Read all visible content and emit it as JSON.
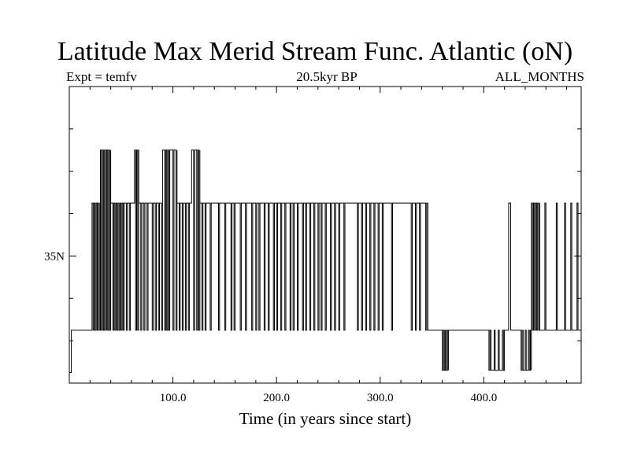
{
  "chart_data": {
    "type": "line",
    "title": "Latitude Max Merid Stream Func. Atlantic (oN)",
    "subtitle_left": "Expt = temfv",
    "subtitle_center": "20.5kyr BP",
    "subtitle_right": "ALL_MONTHS",
    "xlabel": "Time (in years since start)",
    "ylabel": "",
    "xlim": [
      0,
      494
    ],
    "ylim": [
      29,
      43
    ],
    "x_ticks": [
      {
        "value": 100,
        "label": "100.0"
      },
      {
        "value": 200,
        "label": "200.0"
      },
      {
        "value": 300,
        "label": "300.0"
      },
      {
        "value": 400,
        "label": "400.0"
      }
    ],
    "x_minor_step": 20,
    "y_ticks": [
      {
        "value": 35,
        "label": "35N"
      }
    ],
    "y_minor_ticks": [
      31,
      33,
      37,
      39,
      41
    ],
    "grid": false,
    "series": [
      {
        "segments": [
          {
            "x0": 0,
            "x1": 2,
            "y": 29.5
          },
          {
            "x0": 2,
            "x1": 22,
            "y": 31.5
          },
          {
            "x0": 22,
            "x1": 30,
            "y": 37.5,
            "spikes": [
              23,
              25,
              27,
              29
            ]
          },
          {
            "x0": 30,
            "x1": 40,
            "y": 40,
            "spikes": [
              31,
              33,
              35,
              37,
              39
            ]
          },
          {
            "x0": 40,
            "x1": 60,
            "y": 37.5,
            "spikes": [
              42,
              44,
              46,
              48,
              50,
              52,
              55,
              58
            ]
          },
          {
            "x0": 60,
            "x1": 63,
            "y": 37.5
          },
          {
            "x0": 63,
            "x1": 67,
            "y": 40,
            "spikes": [
              64,
              66
            ]
          },
          {
            "x0": 67,
            "x1": 90,
            "y": 37.5,
            "spikes": [
              69,
              72,
              75,
              80,
              83,
              86,
              89
            ]
          },
          {
            "x0": 90,
            "x1": 104,
            "y": 40,
            "spikes": [
              92,
              94,
              96,
              100,
              103
            ]
          },
          {
            "x0": 104,
            "x1": 118,
            "y": 37.5,
            "spikes": [
              106,
              109,
              112,
              115
            ]
          },
          {
            "x0": 118,
            "x1": 126,
            "y": 40,
            "spikes": [
              120,
              123,
              125
            ]
          },
          {
            "x0": 126,
            "x1": 160,
            "y": 37.5,
            "spikes": [
              128,
              131,
              136,
              144,
              150,
              156,
              159
            ]
          },
          {
            "x0": 160,
            "x1": 346,
            "y": 37.5,
            "spikes": [
              165,
              170,
              176,
              180,
              183,
              188,
              192,
              197,
              200,
              204,
              208,
              213,
              216,
              220,
              225,
              228,
              232,
              236,
              240,
              243,
              247,
              252,
              256,
              260,
              265,
              278,
              282,
              286,
              290,
              294,
              298,
              302,
              311,
              330,
              334,
              338,
              344
            ]
          },
          {
            "x0": 346,
            "x1": 360,
            "y": 31.5
          },
          {
            "x0": 360,
            "x1": 366,
            "y": 29.6,
            "spikes": [
              361,
              363,
              365
            ]
          },
          {
            "x0": 366,
            "x1": 405,
            "y": 31.5
          },
          {
            "x0": 405,
            "x1": 420,
            "y": 29.6,
            "spikes": [
              406,
              410,
              414,
              418
            ]
          },
          {
            "x0": 420,
            "x1": 424,
            "y": 31.5
          },
          {
            "x0": 424,
            "x1": 426,
            "y": 37.5
          },
          {
            "x0": 426,
            "x1": 436,
            "y": 31.5
          },
          {
            "x0": 436,
            "x1": 446,
            "y": 29.6,
            "spikes": [
              437,
              440,
              443,
              445
            ]
          },
          {
            "x0": 446,
            "x1": 454,
            "y": 37.5,
            "spikes": [
              447,
              449,
              451,
              453
            ]
          },
          {
            "x0": 454,
            "x1": 494,
            "y": 31.5,
            "spikes": [
              459,
              470,
              478,
              484,
              490
            ]
          }
        ]
      }
    ]
  }
}
